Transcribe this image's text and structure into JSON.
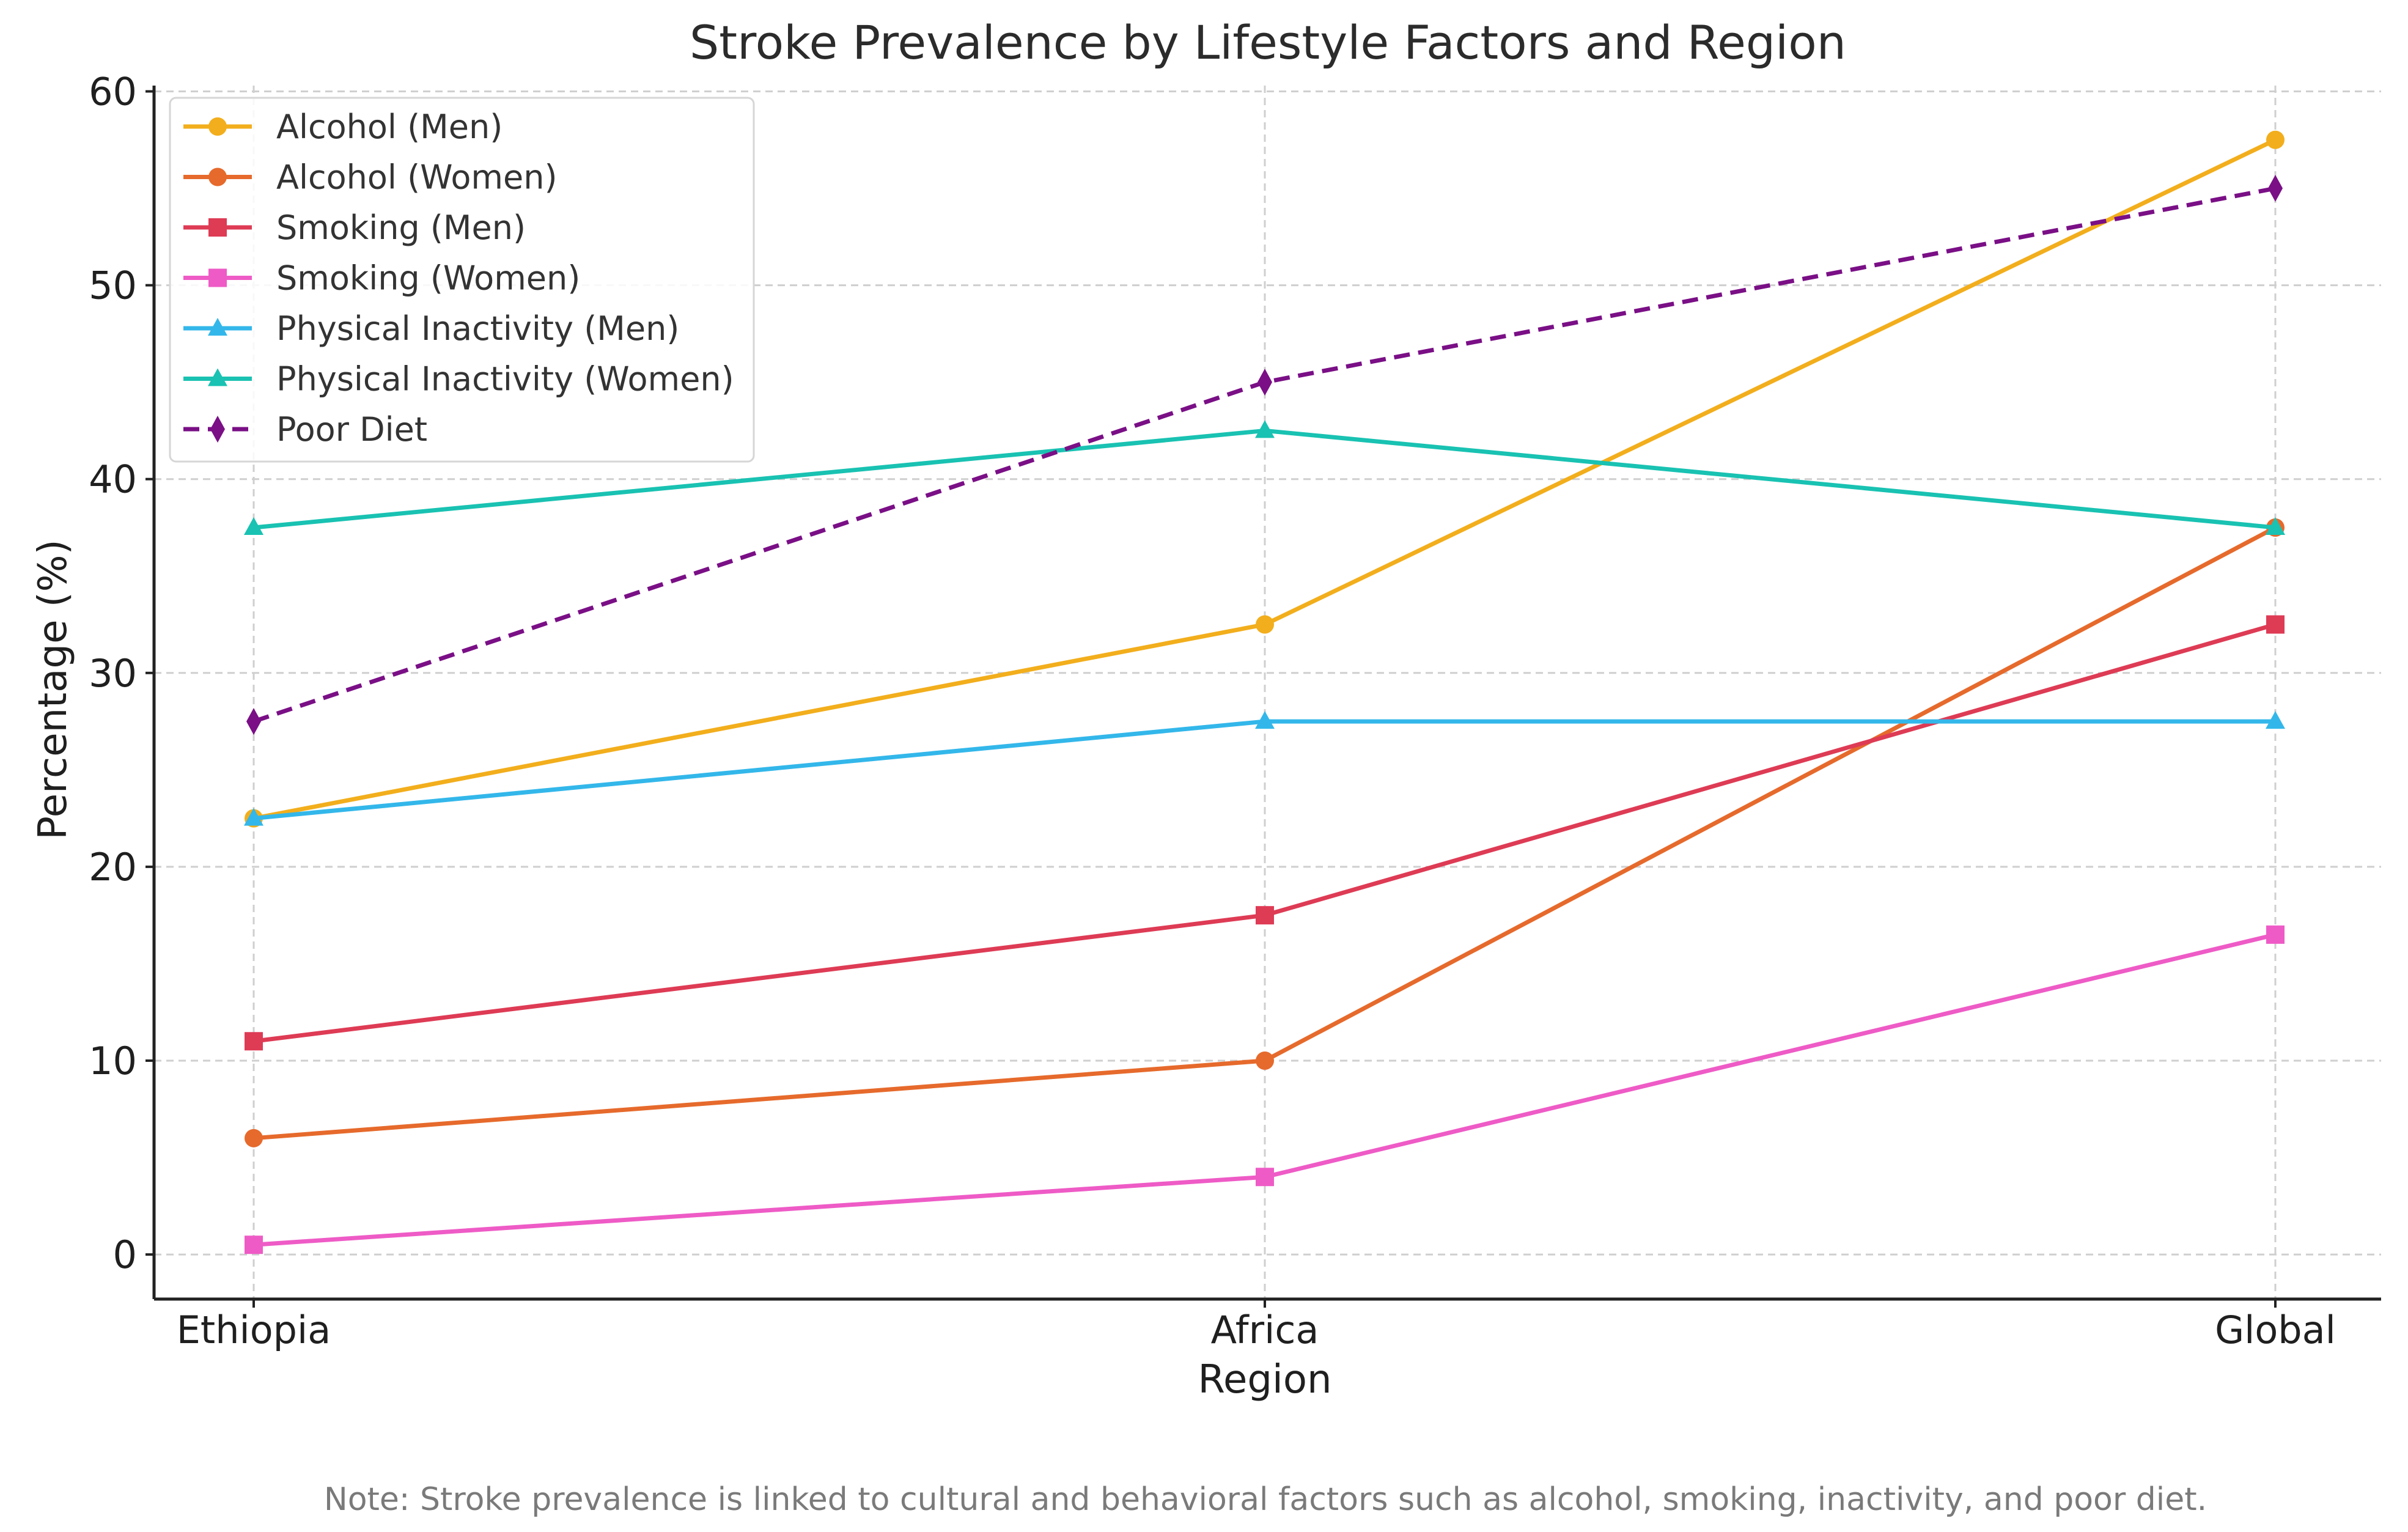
{
  "chart_data": {
    "type": "line",
    "title": "Stroke Prevalence by Lifestyle Factors and Region",
    "xlabel": "Region",
    "ylabel": "Percentage (%)",
    "categories": [
      "Ethiopia",
      "Africa",
      "Global"
    ],
    "ylim": [
      -2.3,
      60.3
    ],
    "yticks": [
      0,
      10,
      20,
      30,
      40,
      50,
      60
    ],
    "grid": true,
    "grid_style": "dashed",
    "legend_position": "top-left",
    "series": [
      {
        "name": "Alcohol (Men)",
        "values": [
          22.5,
          32.5,
          57.5
        ],
        "color": "#F2AE1C",
        "marker": "circle",
        "dash": "solid"
      },
      {
        "name": "Alcohol (Women)",
        "values": [
          6,
          10,
          37.5
        ],
        "color": "#E66A2C",
        "marker": "circle",
        "dash": "solid"
      },
      {
        "name": "Smoking (Men)",
        "values": [
          11,
          17.5,
          32.5
        ],
        "color": "#DE3B55",
        "marker": "square",
        "dash": "solid"
      },
      {
        "name": "Smoking (Women)",
        "values": [
          0.5,
          4,
          16.5
        ],
        "color": "#EE5BC6",
        "marker": "square",
        "dash": "solid"
      },
      {
        "name": "Physical Inactivity (Men)",
        "values": [
          22.5,
          27.5,
          27.5
        ],
        "color": "#33B7EA",
        "marker": "triangle",
        "dash": "solid"
      },
      {
        "name": "Physical Inactivity (Women)",
        "values": [
          37.5,
          42.5,
          37.5
        ],
        "color": "#19C2B2",
        "marker": "triangle",
        "dash": "solid"
      },
      {
        "name": "Poor Diet",
        "values": [
          27.5,
          45,
          55
        ],
        "color": "#7A0F86",
        "marker": "diamond",
        "dash": "dashed"
      }
    ],
    "note": "Note: Stroke prevalence is linked to cultural and behavioral factors such as alcohol, smoking, inactivity, and poor diet."
  }
}
